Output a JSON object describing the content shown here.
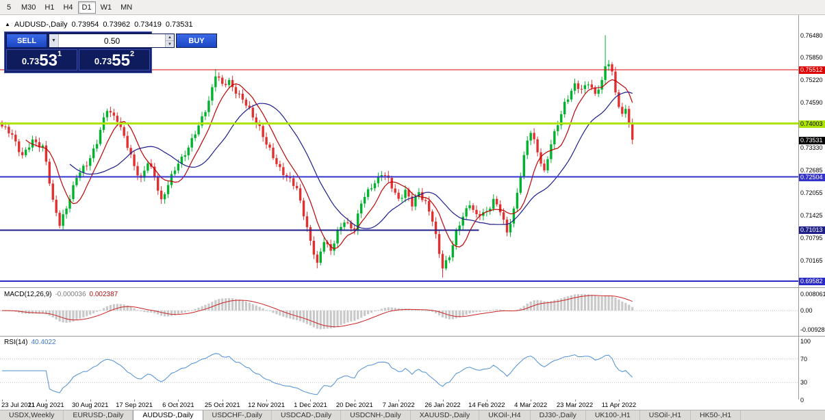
{
  "toolbar": {
    "timeframes": [
      {
        "label": "5",
        "active": false
      },
      {
        "label": "M30",
        "active": false
      },
      {
        "label": "H1",
        "active": false
      },
      {
        "label": "H4",
        "active": false
      },
      {
        "label": "D1",
        "active": true
      },
      {
        "label": "W1",
        "active": false
      },
      {
        "label": "MN",
        "active": false
      }
    ]
  },
  "chart_header": {
    "marker_icon": "▲",
    "symbol": "AUDUSD-,Daily",
    "open": "0.73954",
    "high": "0.73962",
    "low": "0.73419",
    "close": "0.73531"
  },
  "trade_panel": {
    "sell_label": "SELL",
    "buy_label": "BUY",
    "volume": "0.50",
    "sell_price_int": "0.73",
    "sell_price_big": "53",
    "sell_sup": "1",
    "buy_price_int": "0.73",
    "buy_price_big": "55",
    "buy_sup": "2",
    "dropdown_icon": "▼",
    "spin_up_icon": "▲",
    "spin_down_icon": "▼"
  },
  "price_axis": {
    "ticks": [
      "0.76480",
      "0.75850",
      "0.75220",
      "0.74590",
      "0.73330",
      "0.72685",
      "0.72055",
      "0.71425",
      "0.70795",
      "0.70165"
    ],
    "levels": [
      {
        "label": "0.75512",
        "color": "#e00000",
        "fg": "#ffffff",
        "thickness": 1,
        "extent": 1
      },
      {
        "label": "0.74003",
        "color": "#aee400",
        "fg": "#000000",
        "thickness": 3,
        "extent": 1
      },
      {
        "label": "0.72504",
        "color": "#3333cc",
        "fg": "#ffffff",
        "thickness": 2,
        "extent": 1
      },
      {
        "label": "0.71013",
        "color": "#1f1f8a",
        "fg": "#ffffff",
        "thickness": 2,
        "extent": 0.6
      },
      {
        "label": "0.69582",
        "color": "#2929c8",
        "fg": "#ffffff",
        "thickness": 2,
        "extent": 1
      }
    ],
    "current_price": {
      "label": "0.73531",
      "bg": "#000000",
      "fg": "#ffffff"
    }
  },
  "macd_panel": {
    "title": "MACD(12,26,9)",
    "value1": "-0.000036",
    "value2": "0.002387",
    "axis": [
      "0.008061",
      "0.00",
      "-0.00928"
    ]
  },
  "rsi_panel": {
    "title": "RSI(14)",
    "value": "40.4022",
    "axis": [
      "100",
      "70",
      "30",
      "0"
    ],
    "dotted_levels": [
      70,
      30
    ]
  },
  "date_axis": {
    "labels": [
      "23 Jul 2021",
      "11 Aug 2021",
      "30 Aug 2021",
      "17 Sep 2021",
      "6 Oct 2021",
      "25 Oct 2021",
      "12 Nov 2021",
      "1 Dec 2021",
      "20 Dec 2021",
      "7 Jan 2022",
      "26 Jan 2022",
      "14 Feb 2022",
      "4 Mar 2022",
      "23 Mar 2022",
      "11 Apr 2022"
    ]
  },
  "tab_bar": {
    "tabs": [
      {
        "label": "USDX,Weekly",
        "active": false
      },
      {
        "label": "EURUSD-,Daily",
        "active": false
      },
      {
        "label": "AUDUSD-,Daily",
        "active": true
      },
      {
        "label": "USDCHF-,Daily",
        "active": false
      },
      {
        "label": "USDCAD-,Daily",
        "active": false
      },
      {
        "label": "USDCNH-,Daily",
        "active": false
      },
      {
        "label": "XAUUSD-,Daily",
        "active": false
      },
      {
        "label": "UKOil-,H4",
        "active": false
      },
      {
        "label": "DJ30-,Daily",
        "active": false
      },
      {
        "label": "UK100-,H1",
        "active": false
      },
      {
        "label": "USOil-,H1",
        "active": false
      },
      {
        "label": "HK50-,H1",
        "active": false
      }
    ]
  },
  "colors": {
    "candle_up": "#00b22d",
    "candle_down": "#e03030",
    "ma_fast": "#c00000",
    "ma_slow": "#1c1c8c",
    "macd_hist": "#c9c9c9",
    "macd_signal": "#cc2222",
    "rsi_line": "#4b8fd4"
  },
  "chart_data": {
    "type": "candlestick",
    "symbol": "AUDUSD",
    "period": "Daily",
    "visible_price_range": [
      0.694,
      0.77
    ],
    "close_keypoints": [
      [
        0,
        0.7392
      ],
      [
        3,
        0.7366
      ],
      [
        6,
        0.7312
      ],
      [
        9,
        0.7348
      ],
      [
        12,
        0.7338
      ],
      [
        13,
        0.7296
      ],
      [
        15,
        0.7178
      ],
      [
        17,
        0.7116
      ],
      [
        19,
        0.7168
      ],
      [
        22,
        0.7248
      ],
      [
        25,
        0.7288
      ],
      [
        28,
        0.7348
      ],
      [
        31,
        0.744
      ],
      [
        34,
        0.7414
      ],
      [
        36,
        0.736
      ],
      [
        39,
        0.7282
      ],
      [
        41,
        0.7246
      ],
      [
        43,
        0.729
      ],
      [
        45,
        0.725
      ],
      [
        47,
        0.7186
      ],
      [
        49,
        0.723
      ],
      [
        52,
        0.7288
      ],
      [
        55,
        0.7336
      ],
      [
        58,
        0.739
      ],
      [
        61,
        0.7466
      ],
      [
        63,
        0.7538
      ],
      [
        65,
        0.7506
      ],
      [
        67,
        0.752
      ],
      [
        70,
        0.7478
      ],
      [
        73,
        0.7438
      ],
      [
        76,
        0.739
      ],
      [
        78,
        0.734
      ],
      [
        81,
        0.729
      ],
      [
        84,
        0.725
      ],
      [
        87,
        0.7216
      ],
      [
        89,
        0.715
      ],
      [
        91,
        0.7068
      ],
      [
        93,
        0.7002
      ],
      [
        95,
        0.7076
      ],
      [
        97,
        0.7046
      ],
      [
        99,
        0.709
      ],
      [
        101,
        0.7126
      ],
      [
        104,
        0.7106
      ],
      [
        106,
        0.7176
      ],
      [
        109,
        0.7226
      ],
      [
        112,
        0.726
      ],
      [
        114,
        0.724
      ],
      [
        117,
        0.719
      ],
      [
        119,
        0.721
      ],
      [
        121,
        0.717
      ],
      [
        123,
        0.721
      ],
      [
        125,
        0.718
      ],
      [
        127,
        0.7126
      ],
      [
        129,
        0.7036
      ],
      [
        130,
        0.7
      ],
      [
        132,
        0.703
      ],
      [
        134,
        0.709
      ],
      [
        136,
        0.714
      ],
      [
        138,
        0.718
      ],
      [
        140,
        0.714
      ],
      [
        143,
        0.715
      ],
      [
        145,
        0.719
      ],
      [
        147,
        0.7156
      ],
      [
        149,
        0.709
      ],
      [
        151,
        0.716
      ],
      [
        153,
        0.726
      ],
      [
        155,
        0.735
      ],
      [
        156,
        0.7375
      ],
      [
        158,
        0.7325
      ],
      [
        160,
        0.7265
      ],
      [
        162,
        0.734
      ],
      [
        164,
        0.74
      ],
      [
        166,
        0.746
      ],
      [
        169,
        0.7505
      ],
      [
        171,
        0.7495
      ],
      [
        173,
        0.752
      ],
      [
        175,
        0.748
      ],
      [
        177,
        0.7515
      ],
      [
        178,
        0.756
      ],
      [
        179,
        0.7575
      ],
      [
        180,
        0.7545
      ],
      [
        181,
        0.749
      ],
      [
        182,
        0.745
      ],
      [
        183,
        0.7418
      ],
      [
        184,
        0.744
      ],
      [
        185,
        0.7405
      ],
      [
        186,
        0.7352
      ]
    ],
    "wick_overrides": [
      [
        17,
        "low",
        0.7106
      ],
      [
        63,
        "high",
        0.7553
      ],
      [
        93,
        "low",
        0.6994
      ],
      [
        130,
        "low",
        0.6968
      ],
      [
        149,
        "low",
        0.7084
      ],
      [
        178,
        "high",
        0.7648
      ],
      [
        186,
        "low",
        0.7342
      ]
    ],
    "moving_averages": [
      {
        "period": 8,
        "color_key": "ma_fast"
      },
      {
        "period": 21,
        "color_key": "ma_slow"
      }
    ],
    "indicators": [
      {
        "name": "MACD",
        "params": [
          12,
          26,
          9
        ],
        "last_main": -3.6e-05,
        "last_signal": 0.002387
      },
      {
        "name": "RSI",
        "params": [
          14
        ],
        "last_value": 40.4022
      }
    ]
  }
}
